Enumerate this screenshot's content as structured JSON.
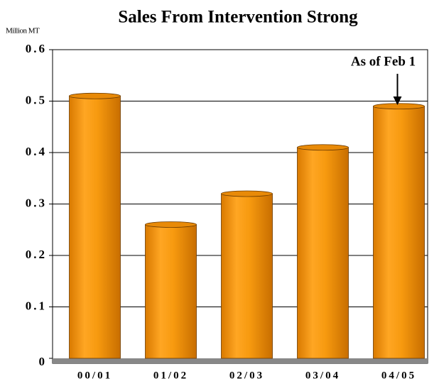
{
  "chart_data": {
    "type": "bar",
    "title": "Sales From Intervention Strong",
    "y_label": "Million MT",
    "annotation": "As of Feb 1",
    "categories": [
      "00/01",
      "01/02",
      "02/03",
      "03/04",
      "04/05"
    ],
    "values": [
      0.51,
      0.26,
      0.32,
      0.41,
      0.49
    ],
    "color": "#f79a0f",
    "ylim": [
      0,
      0.6
    ],
    "yticks": [
      0,
      0.1,
      0.2,
      0.3,
      0.4,
      0.5,
      0.6
    ],
    "grid": true
  }
}
